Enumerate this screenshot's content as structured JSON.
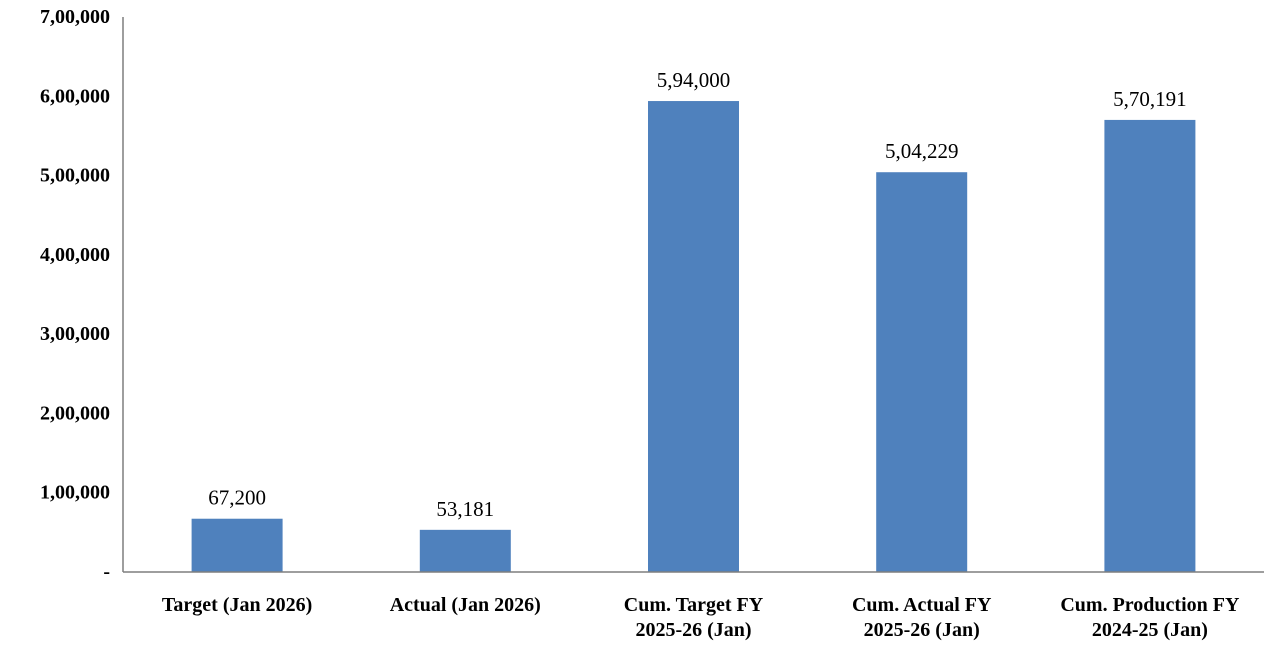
{
  "chart_data": {
    "type": "bar",
    "categories": [
      [
        "Target (Jan 2026)"
      ],
      [
        "Actual (Jan 2026)"
      ],
      [
        "Cum. Target FY",
        "2025-26 (Jan)"
      ],
      [
        "Cum. Actual FY",
        "2025-26 (Jan)"
      ],
      [
        "Cum. Production FY",
        "2024-25 (Jan)"
      ]
    ],
    "values": [
      67200,
      53181,
      594000,
      504229,
      570191
    ],
    "data_labels": [
      "67,200",
      "53,181",
      "5,94,000",
      "5,04,229",
      "5,70,191"
    ],
    "y_ticks": [
      {
        "value": 0,
        "label": "-"
      },
      {
        "value": 100000,
        "label": "1,00,000"
      },
      {
        "value": 200000,
        "label": "2,00,000"
      },
      {
        "value": 300000,
        "label": "3,00,000"
      },
      {
        "value": 400000,
        "label": "4,00,000"
      },
      {
        "value": 500000,
        "label": "5,00,000"
      },
      {
        "value": 600000,
        "label": "6,00,000"
      },
      {
        "value": 700000,
        "label": "7,00,000"
      }
    ],
    "ylim": [
      0,
      700000
    ],
    "title": "",
    "xlabel": "",
    "ylabel": "",
    "grid": false,
    "legend": "none",
    "bar_color": "#4F81BD"
  }
}
